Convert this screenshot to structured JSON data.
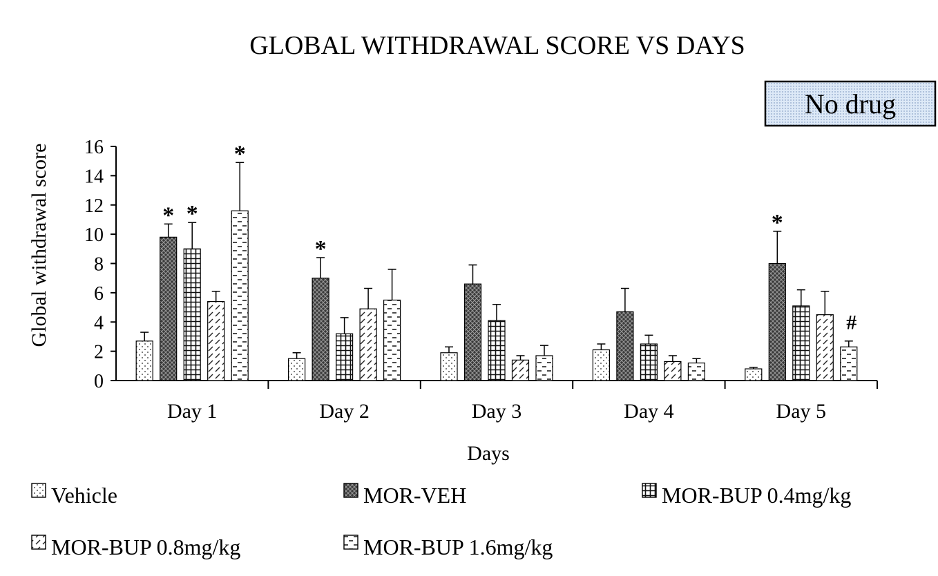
{
  "chart_data": {
    "type": "bar",
    "title": "GLOBAL WITHDRAWAL SCORE VS DAYS",
    "condition_label": "No drug",
    "xlabel": "Days",
    "ylabel": "Global withdrawal score",
    "ylim": [
      0,
      16
    ],
    "yticks": [
      "0",
      "2",
      "4",
      "6",
      "8",
      "10",
      "12",
      "14",
      "16"
    ],
    "grid": false,
    "legend_position": "bottom",
    "categories": [
      "Day 1",
      "Day 2",
      "Day 3",
      "Day 4",
      "Day 5"
    ],
    "series": [
      {
        "name": "Vehicle",
        "pattern": "dots",
        "values": [
          2.7,
          1.5,
          1.9,
          2.1,
          0.8
        ],
        "errors": [
          0.6,
          0.4,
          0.4,
          0.4,
          0.1
        ],
        "markers": [
          "",
          "",
          "",
          "",
          ""
        ]
      },
      {
        "name": "MOR-VEH",
        "pattern": "crosshatch-dark",
        "values": [
          9.8,
          7.0,
          6.6,
          4.7,
          8.0
        ],
        "errors": [
          0.9,
          1.4,
          1.3,
          1.6,
          2.2
        ],
        "markers": [
          "*",
          "*",
          "",
          "",
          "*"
        ]
      },
      {
        "name": "MOR-BUP 0.4mg/kg",
        "pattern": "grid",
        "values": [
          9.0,
          3.2,
          4.1,
          2.5,
          5.1
        ],
        "errors": [
          1.8,
          1.1,
          1.1,
          0.6,
          1.1
        ],
        "markers": [
          "*",
          "",
          "",
          "",
          ""
        ]
      },
      {
        "name": "MOR-BUP 0.8mg/kg",
        "pattern": "diagonal",
        "values": [
          5.4,
          4.9,
          1.4,
          1.3,
          4.5
        ],
        "errors": [
          0.7,
          1.4,
          0.3,
          0.4,
          1.6
        ],
        "markers": [
          "",
          "",
          "",
          "",
          ""
        ]
      },
      {
        "name": "MOR-BUP 1.6mg/kg",
        "pattern": "dashes",
        "values": [
          11.6,
          5.5,
          1.7,
          1.2,
          2.3
        ],
        "errors": [
          3.3,
          2.1,
          0.7,
          0.3,
          0.4
        ],
        "markers": [
          "*",
          "",
          "",
          "",
          "#"
        ]
      }
    ]
  }
}
